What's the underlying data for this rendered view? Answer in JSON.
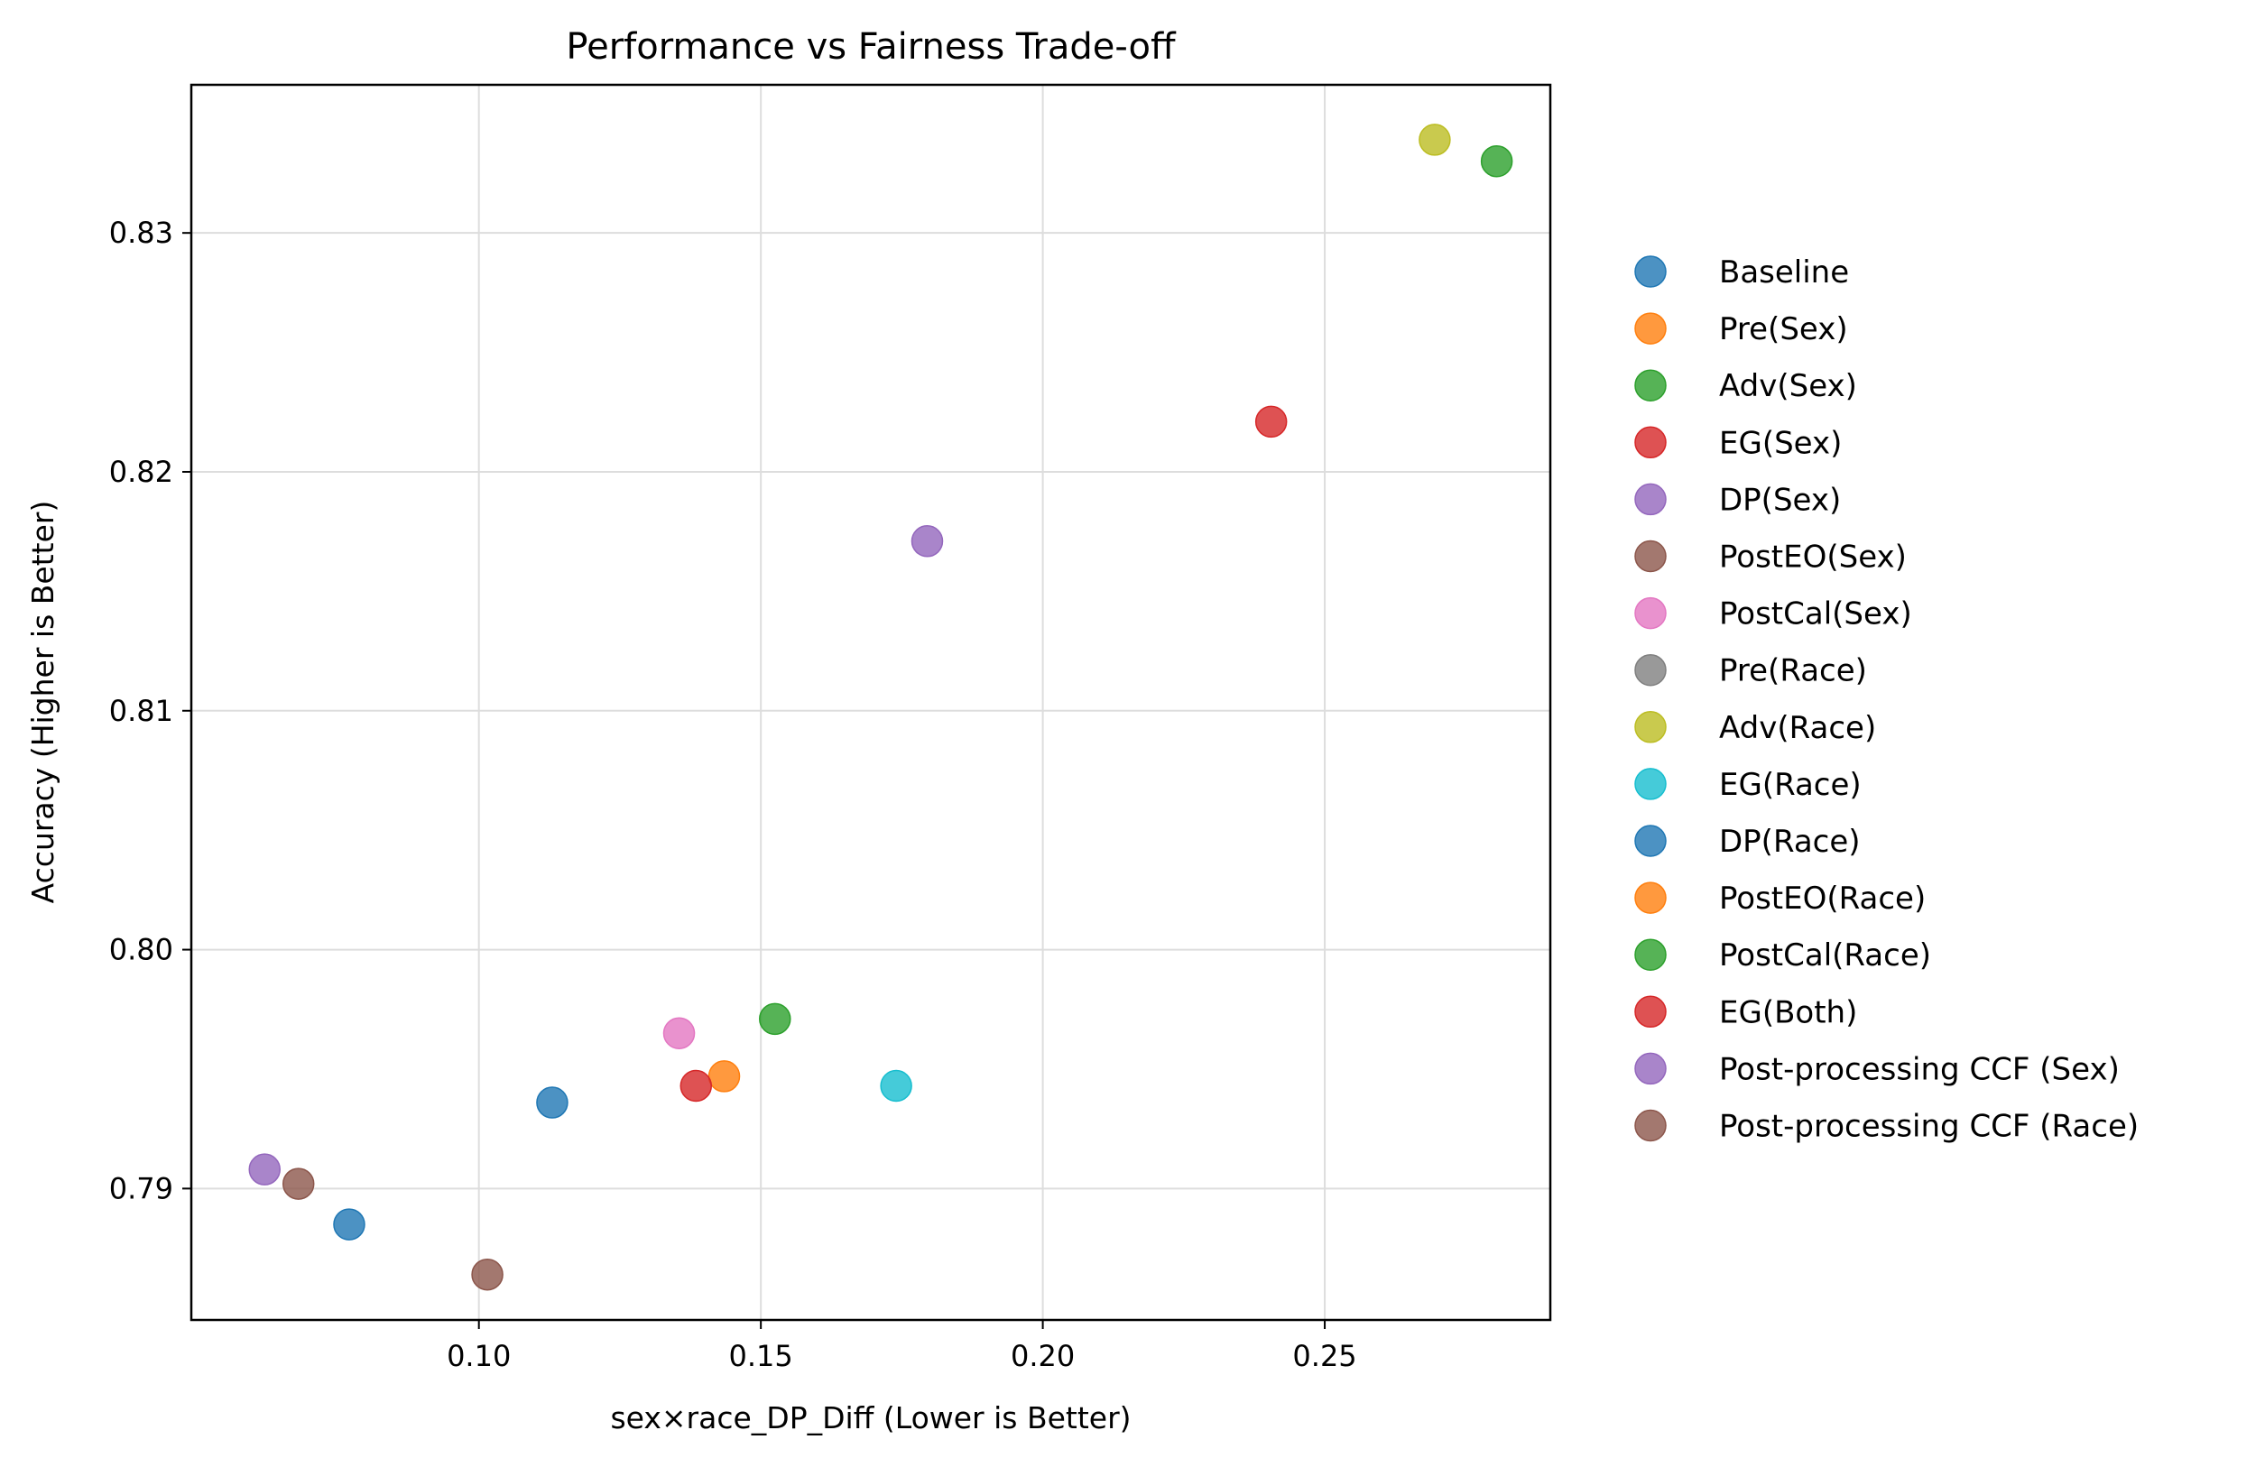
{
  "chart_data": {
    "type": "scatter",
    "title": "Performance vs Fairness Trade-off",
    "xlabel": "sex×race_DP_Diff (Lower is Better)",
    "ylabel": "Accuracy (Higher is Better)",
    "xlim": [
      0.049,
      0.29
    ],
    "ylim": [
      0.7845,
      0.8362
    ],
    "xticks": [
      0.1,
      0.15,
      0.2,
      0.25
    ],
    "xtick_labels": [
      "0.10",
      "0.15",
      "0.20",
      "0.25"
    ],
    "yticks": [
      0.79,
      0.8,
      0.81,
      0.82,
      0.83
    ],
    "ytick_labels": [
      "0.79",
      "0.80",
      "0.81",
      "0.82",
      "0.83"
    ],
    "grid": true,
    "legend_position": "right",
    "series": [
      {
        "name": "Baseline",
        "color": "#1f77b4",
        "points": [
          [
            0.113,
            0.7936
          ]
        ]
      },
      {
        "name": "Pre(Sex)",
        "color": "#ff7f0e",
        "points": [
          [
            0.1435,
            0.7947
          ]
        ]
      },
      {
        "name": "Adv(Sex)",
        "color": "#2ca02c",
        "points": [
          [
            0.2805,
            0.833
          ]
        ]
      },
      {
        "name": "EG(Sex)",
        "color": "#d62728",
        "points": [
          [
            0.2405,
            0.8221
          ]
        ]
      },
      {
        "name": "DP(Sex)",
        "color": "#9467bd",
        "points": [
          [
            0.1795,
            0.8171
          ]
        ]
      },
      {
        "name": "PostEO(Sex)",
        "color": "#8c564b",
        "points": [
          [
            0.1015,
            0.7864
          ]
        ]
      },
      {
        "name": "PostCal(Sex)",
        "color": "#e377c2",
        "points": [
          [
            0.1355,
            0.7965
          ]
        ]
      },
      {
        "name": "Pre(Race)",
        "color": "#7f7f7f",
        "points": []
      },
      {
        "name": "Adv(Race)",
        "color": "#bcbd22",
        "points": [
          [
            0.2695,
            0.8339
          ]
        ]
      },
      {
        "name": "EG(Race)",
        "color": "#17becf",
        "points": [
          [
            0.174,
            0.7943
          ]
        ]
      },
      {
        "name": "DP(Race)",
        "color": "#1f77b4",
        "points": [
          [
            0.077,
            0.7885
          ]
        ]
      },
      {
        "name": "PostEO(Race)",
        "color": "#ff7f0e",
        "points": []
      },
      {
        "name": "PostCal(Race)",
        "color": "#2ca02c",
        "points": [
          [
            0.1525,
            0.7971
          ]
        ]
      },
      {
        "name": "EG(Both)",
        "color": "#d62728",
        "points": [
          [
            0.1385,
            0.7943
          ]
        ]
      },
      {
        "name": "Post-processing CCF (Sex)",
        "color": "#9467bd",
        "points": [
          [
            0.062,
            0.7908
          ]
        ]
      },
      {
        "name": "Post-processing CCF (Race)",
        "color": "#8c564b",
        "points": [
          [
            0.068,
            0.7902
          ]
        ]
      }
    ]
  }
}
